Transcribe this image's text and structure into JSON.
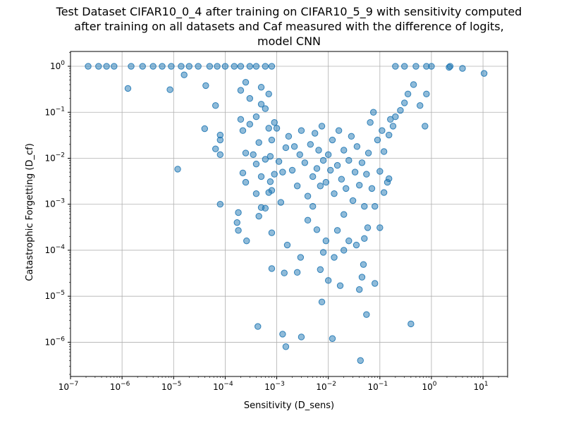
{
  "chart_data": {
    "type": "scatter",
    "title_lines": [
      "Test Dataset CIFAR10_0_4 after training on CIFAR10_5_9 with sensitivity computed",
      "after training on all datasets and Caf measured with the difference of logits,",
      "model CNN"
    ],
    "xlabel": "Sensitivity (D_sens)",
    "ylabel": "Catastrophic Forgetting (D_cf)",
    "x_scale": "log",
    "y_scale": "log",
    "xlim": [
      1e-07,
      30
    ],
    "ylim": [
      1.8e-07,
      2.1
    ],
    "x_ticks": [
      {
        "value": 1e-07,
        "base": "10",
        "exp": "−7"
      },
      {
        "value": 1e-06,
        "base": "10",
        "exp": "−6"
      },
      {
        "value": 1e-05,
        "base": "10",
        "exp": "−5"
      },
      {
        "value": 0.0001,
        "base": "10",
        "exp": "−4"
      },
      {
        "value": 0.001,
        "base": "10",
        "exp": "−3"
      },
      {
        "value": 0.01,
        "base": "10",
        "exp": "−2"
      },
      {
        "value": 0.1,
        "base": "10",
        "exp": "−1"
      },
      {
        "value": 1,
        "base": "10",
        "exp": "0"
      },
      {
        "value": 10,
        "base": "10",
        "exp": "1"
      }
    ],
    "y_ticks": [
      {
        "value": 1e-06,
        "base": "10",
        "exp": "−6"
      },
      {
        "value": 1e-05,
        "base": "10",
        "exp": "−5"
      },
      {
        "value": 0.0001,
        "base": "10",
        "exp": "−4"
      },
      {
        "value": 0.001,
        "base": "10",
        "exp": "−3"
      },
      {
        "value": 0.01,
        "base": "10",
        "exp": "−2"
      },
      {
        "value": 0.1,
        "base": "10",
        "exp": "−1"
      },
      {
        "value": 1,
        "base": "10",
        "exp": "0"
      }
    ],
    "grid": true,
    "legend": "none",
    "marker_color": "#1f77b4",
    "series": [
      {
        "points": [
          [
            2.2e-07,
            1.0
          ],
          [
            3.5e-07,
            1.0
          ],
          [
            5e-07,
            1.0
          ],
          [
            7e-07,
            1.0
          ],
          [
            1.5e-06,
            1.0
          ],
          [
            2.5e-06,
            1.0
          ],
          [
            4e-06,
            1.0
          ],
          [
            6e-06,
            1.0
          ],
          [
            9e-06,
            1.0
          ],
          [
            1.4e-05,
            1.0
          ],
          [
            2e-05,
            1.0
          ],
          [
            3e-05,
            1.0
          ],
          [
            5e-05,
            1.0
          ],
          [
            7e-05,
            1.0
          ],
          [
            0.0001,
            1.0
          ],
          [
            0.00015,
            1.0
          ],
          [
            0.0002,
            1.0
          ],
          [
            0.0003,
            1.0
          ],
          [
            0.0004,
            1.0
          ],
          [
            0.0006,
            1.0
          ],
          [
            0.0008,
            1.0
          ],
          [
            0.2,
            1.0
          ],
          [
            0.3,
            1.0
          ],
          [
            0.5,
            1.0
          ],
          [
            0.8,
            1.0
          ],
          [
            1.0,
            1.0
          ],
          [
            2.2,
            0.95
          ],
          [
            4.0,
            0.9
          ],
          [
            10.5,
            0.7
          ],
          [
            2.3,
            1.0
          ],
          [
            1.3e-06,
            0.33
          ],
          [
            8.5e-06,
            0.31
          ],
          [
            1.6e-05,
            0.65
          ],
          [
            4.2e-05,
            0.38
          ],
          [
            6.5e-05,
            0.14
          ],
          [
            0.0002,
            0.3
          ],
          [
            0.00025,
            0.45
          ],
          [
            0.0003,
            0.2
          ],
          [
            0.0005,
            0.35
          ],
          [
            0.0007,
            0.25
          ],
          [
            0.6,
            0.14
          ],
          [
            0.8,
            0.25
          ],
          [
            0.75,
            0.05
          ],
          [
            1.2e-05,
            0.0058
          ],
          [
            4e-05,
            0.044
          ],
          [
            6.5e-05,
            0.016
          ],
          [
            8e-05,
            0.025
          ],
          [
            8e-05,
            0.032
          ],
          [
            8e-05,
            0.012
          ],
          [
            8e-05,
            0.001
          ],
          [
            0.0002,
            0.07
          ],
          [
            0.00022,
            0.04
          ],
          [
            0.00025,
            0.013
          ],
          [
            0.00022,
            0.0048
          ],
          [
            0.00025,
            0.003
          ],
          [
            0.00018,
            0.00066
          ],
          [
            0.00017,
            0.0004
          ],
          [
            0.00018,
            0.00027
          ],
          [
            0.00026,
            0.00016
          ],
          [
            0.0004,
            0.0017
          ],
          [
            0.00045,
            0.00055
          ],
          [
            0.0005,
            0.00085
          ],
          [
            0.0006,
            0.00082
          ],
          [
            0.00075,
            0.0031
          ],
          [
            0.0008,
            0.002
          ],
          [
            0.0008,
            0.00024
          ],
          [
            0.0008,
            4e-05
          ],
          [
            0.00043,
            2.2e-06
          ],
          [
            0.0012,
            0.0011
          ],
          [
            0.0014,
            3.2e-05
          ],
          [
            0.0013,
            1.5e-06
          ],
          [
            0.0015,
            8e-07
          ],
          [
            0.0016,
            0.00013
          ],
          [
            0.0025,
            3.3e-05
          ],
          [
            0.0029,
            7e-05
          ],
          [
            0.003,
            1.3e-06
          ],
          [
            0.004,
            0.00045
          ],
          [
            0.005,
            0.0009
          ],
          [
            0.006,
            0.00028
          ],
          [
            0.007,
            3.8e-05
          ],
          [
            0.0075,
            7.5e-06
          ],
          [
            0.008,
            9e-05
          ],
          [
            0.009,
            0.00016
          ],
          [
            0.01,
            2.2e-05
          ],
          [
            0.012,
            1.2e-06
          ],
          [
            0.013,
            7e-05
          ],
          [
            0.015,
            0.00027
          ],
          [
            0.017,
            1.7e-05
          ],
          [
            0.02,
            0.0006
          ],
          [
            0.02,
            0.0001
          ],
          [
            0.025,
            0.00016
          ],
          [
            0.035,
            0.00013
          ],
          [
            0.04,
            1.4e-05
          ],
          [
            0.042,
            4e-07
          ],
          [
            0.045,
            2.6e-05
          ],
          [
            0.048,
            4.9e-05
          ],
          [
            0.05,
            0.00018
          ],
          [
            0.055,
            4e-06
          ],
          [
            0.058,
            0.00031
          ],
          [
            0.08,
            1.9e-05
          ],
          [
            0.1,
            0.00031
          ],
          [
            0.4,
            2.5e-06
          ],
          [
            0.12,
            0.0018
          ],
          [
            0.14,
            0.003
          ],
          [
            0.15,
            0.0036
          ],
          [
            0.1,
            0.0052
          ],
          [
            0.12,
            0.014
          ],
          [
            0.15,
            0.032
          ],
          [
            0.18,
            0.05
          ],
          [
            0.2,
            0.08
          ],
          [
            0.25,
            0.11
          ],
          [
            0.3,
            0.16
          ],
          [
            0.35,
            0.25
          ],
          [
            0.45,
            0.4
          ],
          [
            0.11,
            0.04
          ],
          [
            0.16,
            0.07
          ],
          [
            0.001,
            0.045
          ],
          [
            0.0011,
            0.0085
          ],
          [
            0.0013,
            0.005
          ],
          [
            0.0015,
            0.017
          ],
          [
            0.0017,
            0.03
          ],
          [
            0.002,
            0.0055
          ],
          [
            0.0022,
            0.018
          ],
          [
            0.0025,
            0.0025
          ],
          [
            0.0028,
            0.012
          ],
          [
            0.003,
            0.04
          ],
          [
            0.0035,
            0.008
          ],
          [
            0.004,
            0.0015
          ],
          [
            0.0045,
            0.02
          ],
          [
            0.005,
            0.004
          ],
          [
            0.0055,
            0.035
          ],
          [
            0.006,
            0.006
          ],
          [
            0.0065,
            0.015
          ],
          [
            0.007,
            0.0025
          ],
          [
            0.0075,
            0.05
          ],
          [
            0.008,
            0.009
          ],
          [
            0.009,
            0.003
          ],
          [
            0.01,
            0.012
          ],
          [
            0.011,
            0.0055
          ],
          [
            0.012,
            0.025
          ],
          [
            0.013,
            0.0017
          ],
          [
            0.015,
            0.007
          ],
          [
            0.016,
            0.04
          ],
          [
            0.018,
            0.0035
          ],
          [
            0.02,
            0.015
          ],
          [
            0.022,
            0.0022
          ],
          [
            0.025,
            0.009
          ],
          [
            0.028,
            0.03
          ],
          [
            0.03,
            0.0012
          ],
          [
            0.033,
            0.005
          ],
          [
            0.036,
            0.018
          ],
          [
            0.04,
            0.0026
          ],
          [
            0.045,
            0.008
          ],
          [
            0.05,
            0.0009
          ],
          [
            0.055,
            0.0045
          ],
          [
            0.06,
            0.013
          ],
          [
            0.07,
            0.0022
          ],
          [
            0.08,
            0.0009
          ],
          [
            0.09,
            0.025
          ],
          [
            0.065,
            0.06
          ],
          [
            0.075,
            0.1
          ],
          [
            0.0004,
            0.08
          ],
          [
            0.0005,
            0.15
          ],
          [
            0.0006,
            0.12
          ],
          [
            0.0007,
            0.045
          ],
          [
            0.0008,
            0.025
          ],
          [
            0.0009,
            0.06
          ],
          [
            0.0003,
            0.055
          ],
          [
            0.00035,
            0.012
          ],
          [
            0.0004,
            0.0075
          ],
          [
            0.00045,
            0.022
          ],
          [
            0.0005,
            0.004
          ],
          [
            0.0006,
            0.0095
          ],
          [
            0.0007,
            0.0018
          ],
          [
            0.00075,
            0.011
          ],
          [
            0.0009,
            0.0045
          ]
        ]
      }
    ]
  }
}
